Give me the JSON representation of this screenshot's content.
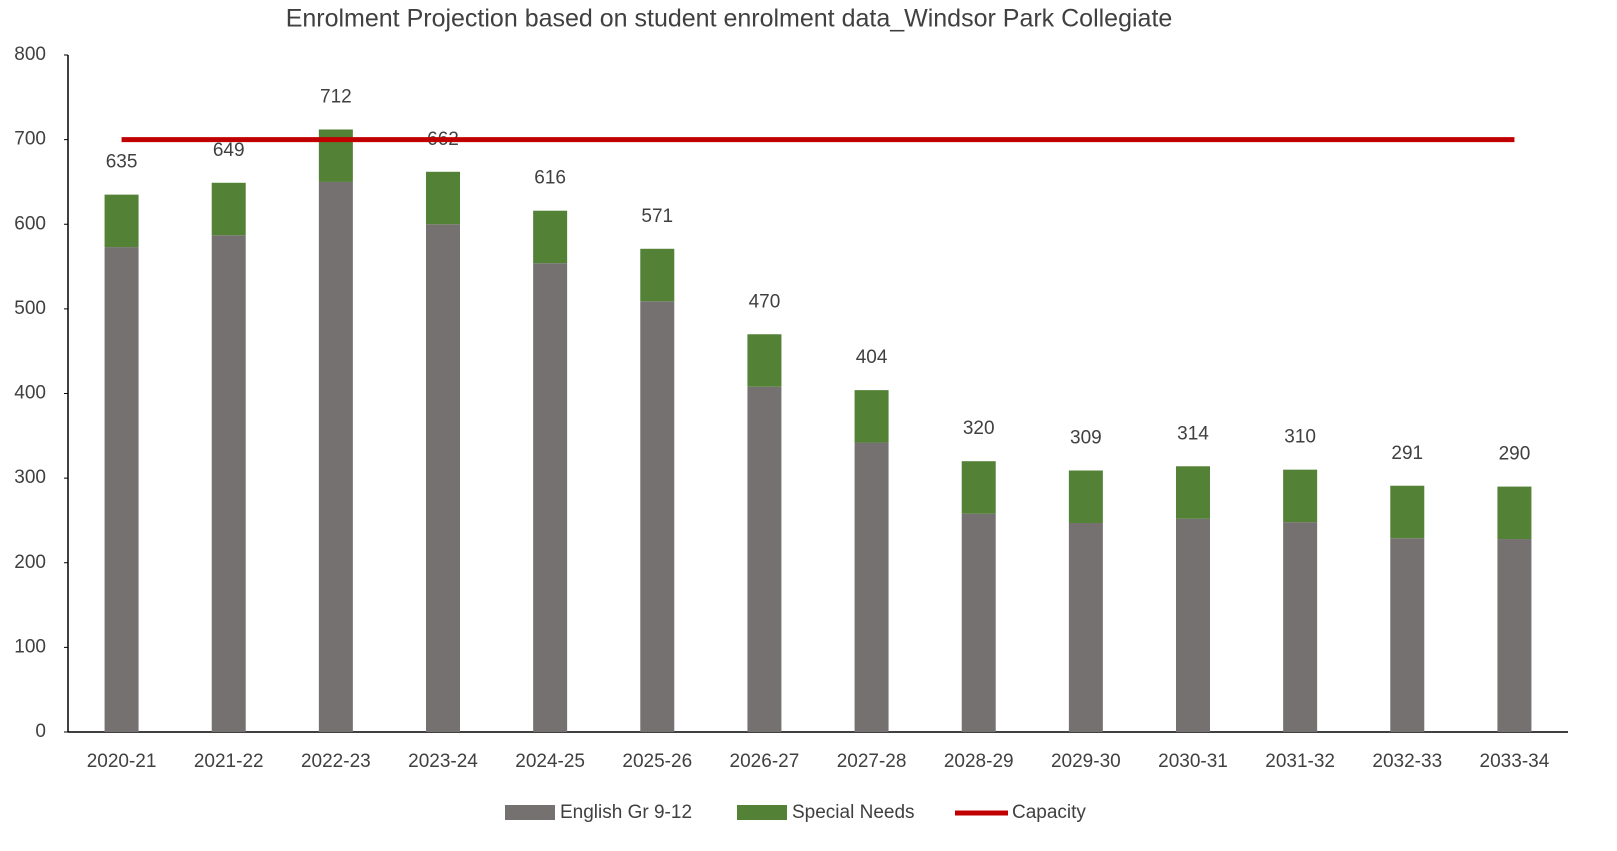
{
  "chart_data": {
    "type": "stacked_bar",
    "title": "Enrolment Projection based on student enrolment data_Windsor Park Collegiate",
    "categories": [
      "2020-21",
      "2021-22",
      "2022-23",
      "2023-24",
      "2024-25",
      "2025-26",
      "2026-27",
      "2027-28",
      "2028-29",
      "2029-30",
      "2030-31",
      "2031-32",
      "2032-33",
      "2033-34"
    ],
    "series": [
      {
        "name": "English Gr 9-12",
        "color": "#767171",
        "type": "bar",
        "values": [
          573,
          587,
          650,
          600,
          554,
          509,
          408,
          342,
          258,
          247,
          252,
          248,
          229,
          228
        ]
      },
      {
        "name": "Special Needs",
        "color": "#538135",
        "type": "bar",
        "values": [
          62,
          62,
          62,
          62,
          62,
          62,
          62,
          62,
          62,
          62,
          62,
          62,
          62,
          62
        ]
      },
      {
        "name": "Capacity",
        "color": "#c00000",
        "type": "line",
        "values": [
          700,
          700,
          700,
          700,
          700,
          700,
          700,
          700,
          700,
          700,
          700,
          700,
          700,
          700
        ]
      }
    ],
    "total_labels": [
      635,
      649,
      712,
      662,
      616,
      571,
      470,
      404,
      320,
      309,
      314,
      310,
      291,
      290
    ],
    "ylim": [
      0,
      800
    ],
    "yticks": [
      0,
      100,
      200,
      300,
      400,
      500,
      600,
      700,
      800
    ],
    "grid": false,
    "legend": "bottom"
  }
}
